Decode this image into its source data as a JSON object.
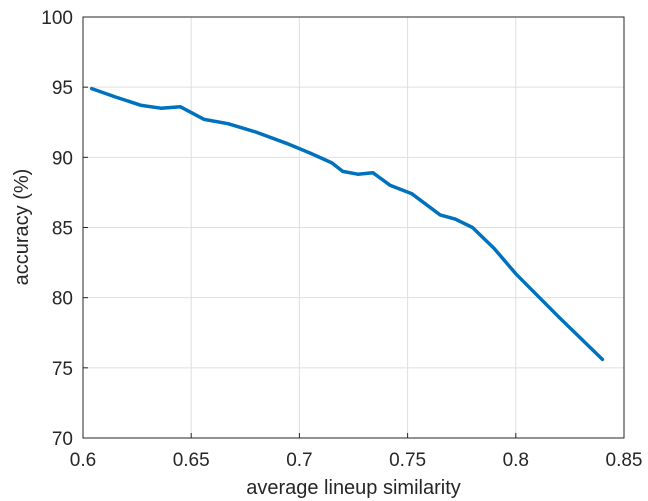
{
  "chart_data": {
    "type": "line",
    "title": "",
    "xlabel": "average lineup similarity",
    "ylabel": "accuracy (%)",
    "xlim": [
      0.6,
      0.85
    ],
    "ylim": [
      70,
      100
    ],
    "xticks": [
      "0.6",
      "0.65",
      "0.7",
      "0.75",
      "0.8",
      "0.85"
    ],
    "yticks": [
      "70",
      "75",
      "80",
      "85",
      "90",
      "95",
      "100"
    ],
    "grid": true,
    "series": [
      {
        "color": "#0072bd",
        "x": [
          0.604,
          0.615,
          0.627,
          0.636,
          0.645,
          0.656,
          0.667,
          0.68,
          0.694,
          0.705,
          0.715,
          0.72,
          0.727,
          0.734,
          0.742,
          0.752,
          0.765,
          0.772,
          0.78,
          0.79,
          0.8,
          0.82,
          0.84
        ],
        "y": [
          94.9,
          94.3,
          93.7,
          93.5,
          93.6,
          92.7,
          92.4,
          91.8,
          91.0,
          90.3,
          89.6,
          89.0,
          88.8,
          88.9,
          88.0,
          87.4,
          85.9,
          85.6,
          85.0,
          83.5,
          81.7,
          78.6,
          75.6
        ]
      }
    ]
  }
}
